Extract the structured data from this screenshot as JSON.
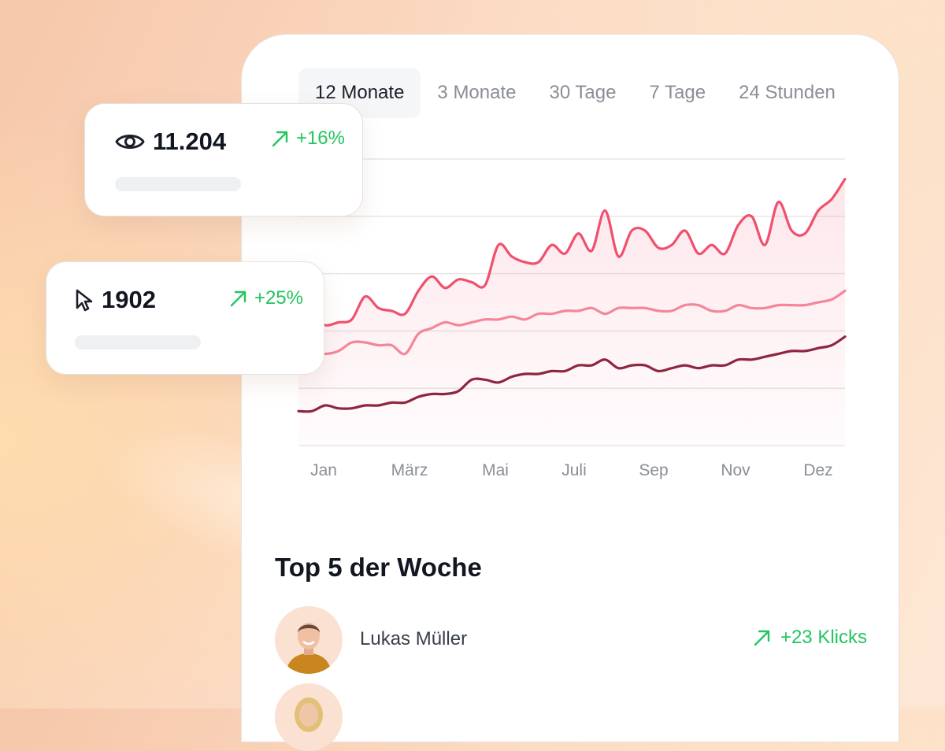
{
  "tabs": [
    {
      "label": "12 Monate",
      "active": true
    },
    {
      "label": "3 Monate",
      "active": false
    },
    {
      "label": "30 Tage",
      "active": false
    },
    {
      "label": "7 Tage",
      "active": false
    },
    {
      "label": "24 Stunden",
      "active": false
    }
  ],
  "stats": {
    "views": {
      "icon": "eye-icon",
      "value": "11.204",
      "delta": "+16%"
    },
    "clicks": {
      "icon": "cursor-icon",
      "value": "1902",
      "delta": "+25%"
    }
  },
  "top5": {
    "title": "Top 5 der Woche",
    "items": [
      {
        "name": "Lukas Müller",
        "delta": "+23 Klicks"
      }
    ]
  },
  "colors": {
    "accent_pink": "#f0506e",
    "light_pink": "#f4869a",
    "dark_red": "#8e2640",
    "positive": "#22c55e"
  },
  "chart_data": {
    "type": "line",
    "x_labels": [
      "Jan",
      "März",
      "Mai",
      "Juli",
      "Sep",
      "Nov",
      "Dez"
    ],
    "ylim": [
      0,
      100
    ],
    "grid": true,
    "series": [
      {
        "color": "#f0506e",
        "fill": true,
        "values": [
          49,
          45,
          42,
          43,
          44,
          52,
          48,
          47,
          46,
          54,
          59,
          55,
          58,
          57,
          56,
          70,
          66,
          64,
          64,
          70,
          67,
          74,
          68,
          82,
          66,
          75,
          75,
          69,
          70,
          75,
          67,
          70,
          67,
          77,
          80,
          70,
          85,
          75,
          74,
          82,
          86,
          93
        ]
      },
      {
        "color": "#f4869a",
        "fill": false,
        "values": [
          35,
          33,
          32,
          33,
          36,
          36,
          35,
          35,
          32,
          39,
          41,
          43,
          42,
          43,
          44,
          44,
          45,
          44,
          46,
          46,
          47,
          47,
          48,
          46,
          48,
          48,
          48,
          47,
          47,
          49,
          49,
          47,
          47,
          49,
          48,
          48,
          49,
          49,
          49,
          50,
          51,
          54
        ]
      },
      {
        "color": "#8e2640",
        "fill": false,
        "values": [
          12,
          12,
          14,
          13,
          13,
          14,
          14,
          15,
          15,
          17,
          18,
          18,
          19,
          23,
          23,
          22,
          24,
          25,
          25,
          26,
          26,
          28,
          28,
          30,
          27,
          28,
          28,
          26,
          27,
          28,
          27,
          28,
          28,
          30,
          30,
          31,
          32,
          33,
          33,
          34,
          35,
          38
        ]
      }
    ]
  }
}
